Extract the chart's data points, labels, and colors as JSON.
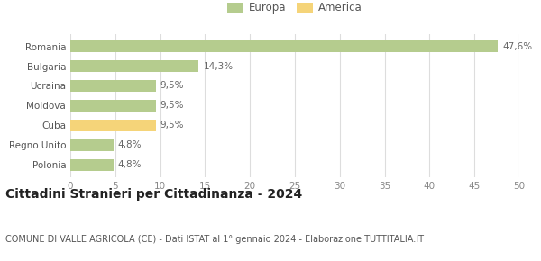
{
  "categories": [
    "Polonia",
    "Regno Unito",
    "Cuba",
    "Moldova",
    "Ucraina",
    "Bulgaria",
    "Romania"
  ],
  "values": [
    4.8,
    4.8,
    9.5,
    9.5,
    9.5,
    14.3,
    47.6
  ],
  "labels": [
    "4,8%",
    "4,8%",
    "9,5%",
    "9,5%",
    "9,5%",
    "14,3%",
    "47,6%"
  ],
  "colors": [
    "#b5cc8e",
    "#b5cc8e",
    "#f5d479",
    "#b5cc8e",
    "#b5cc8e",
    "#b5cc8e",
    "#b5cc8e"
  ],
  "europa_color": "#b5cc8e",
  "america_color": "#f5d479",
  "xlim": [
    0,
    50
  ],
  "xticks": [
    0,
    5,
    10,
    15,
    20,
    25,
    30,
    35,
    40,
    45,
    50
  ],
  "title": "Cittadini Stranieri per Cittadinanza - 2024",
  "subtitle": "COMUNE DI VALLE AGRICOLA (CE) - Dati ISTAT al 1° gennaio 2024 - Elaborazione TUTTITALIA.IT",
  "legend_europa": "Europa",
  "legend_america": "America",
  "background_color": "#ffffff",
  "grid_color": "#dddddd",
  "bar_height": 0.6,
  "label_fontsize": 7.5,
  "title_fontsize": 10,
  "subtitle_fontsize": 7,
  "tick_fontsize": 7.5,
  "ytick_fontsize": 7.5
}
